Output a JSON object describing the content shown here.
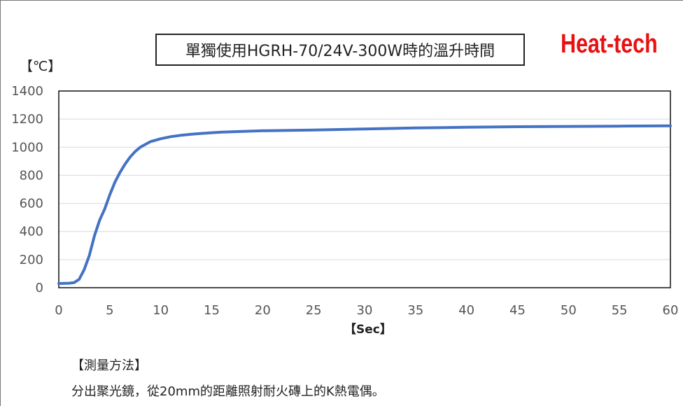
{
  "header": {
    "title": "單獨使用HGRH-70/24V-300W時的溫升時間",
    "brand": "Heat-tech"
  },
  "chart_data": {
    "type": "line",
    "title": "單獨使用HGRH-70/24V-300W時的溫升時間",
    "ylabel": "【℃】",
    "xlabel": "【Sec】",
    "xlim": [
      0,
      60
    ],
    "ylim": [
      0,
      1400
    ],
    "x_ticks": [
      0,
      5,
      10,
      15,
      20,
      25,
      30,
      35,
      40,
      45,
      50,
      55,
      60
    ],
    "y_ticks": [
      0,
      200,
      400,
      600,
      800,
      1000,
      1200,
      1400
    ],
    "grid": "horizontal",
    "legend": "none",
    "series": [
      {
        "color": "#4472c4",
        "x": [
          0,
          1,
          1.5,
          2,
          2.5,
          3,
          3.5,
          4,
          4.5,
          5,
          5.5,
          6,
          6.5,
          7,
          7.5,
          8,
          8.5,
          9,
          10,
          11,
          12,
          13,
          14,
          15,
          16,
          18,
          20,
          25,
          30,
          35,
          40,
          45,
          50,
          55,
          60
        ],
        "y": [
          30,
          32,
          36,
          60,
          130,
          230,
          370,
          480,
          560,
          660,
          750,
          820,
          880,
          930,
          970,
          1000,
          1020,
          1040,
          1060,
          1075,
          1085,
          1092,
          1098,
          1103,
          1107,
          1112,
          1117,
          1122,
          1130,
          1137,
          1142,
          1146,
          1148,
          1150,
          1152
        ]
      }
    ]
  },
  "notes": {
    "method_title": "【測量方法】",
    "method_desc": "分出聚光鏡，從20mm的距離照射耐火磚上的K熱電偶。"
  }
}
